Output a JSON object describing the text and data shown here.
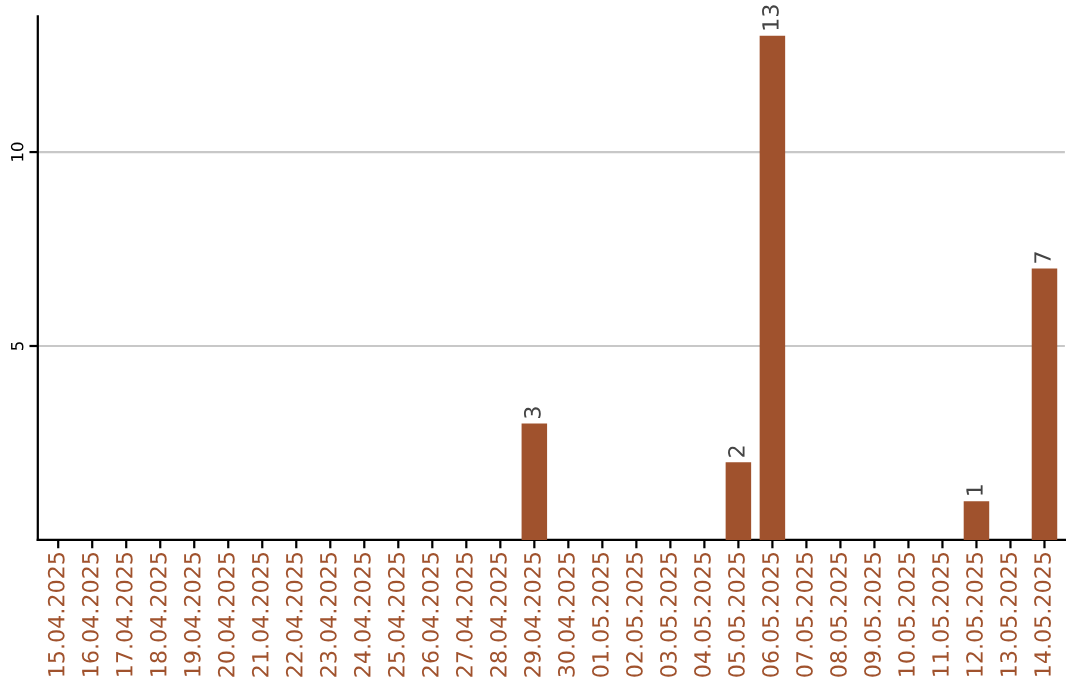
{
  "chart_data": {
    "type": "bar",
    "categories": [
      "15.04.2025",
      "16.04.2025",
      "17.04.2025",
      "18.04.2025",
      "19.04.2025",
      "20.04.2025",
      "21.04.2025",
      "22.04.2025",
      "23.04.2025",
      "24.04.2025",
      "25.04.2025",
      "26.04.2025",
      "27.04.2025",
      "28.04.2025",
      "29.04.2025",
      "30.04.2025",
      "01.05.2025",
      "02.05.2025",
      "03.05.2025",
      "04.05.2025",
      "05.05.2025",
      "06.05.2025",
      "07.05.2025",
      "08.05.2025",
      "09.05.2025",
      "10.05.2025",
      "11.05.2025",
      "12.05.2025",
      "13.05.2025",
      "14.05.2025"
    ],
    "values": [
      0,
      0,
      0,
      0,
      0,
      0,
      0,
      0,
      0,
      0,
      0,
      0,
      0,
      0,
      3,
      0,
      0,
      0,
      0,
      0,
      2,
      13,
      0,
      0,
      0,
      0,
      0,
      1,
      0,
      7
    ],
    "value_labels": [
      null,
      null,
      null,
      null,
      null,
      null,
      null,
      null,
      null,
      null,
      null,
      null,
      null,
      null,
      "3",
      null,
      null,
      null,
      null,
      null,
      "2",
      "13",
      null,
      null,
      null,
      null,
      null,
      "1",
      null,
      "7"
    ],
    "color": "#a0522d",
    "ylim": [
      0,
      13.5
    ],
    "yticks": [
      5,
      10
    ],
    "grid": "y"
  }
}
